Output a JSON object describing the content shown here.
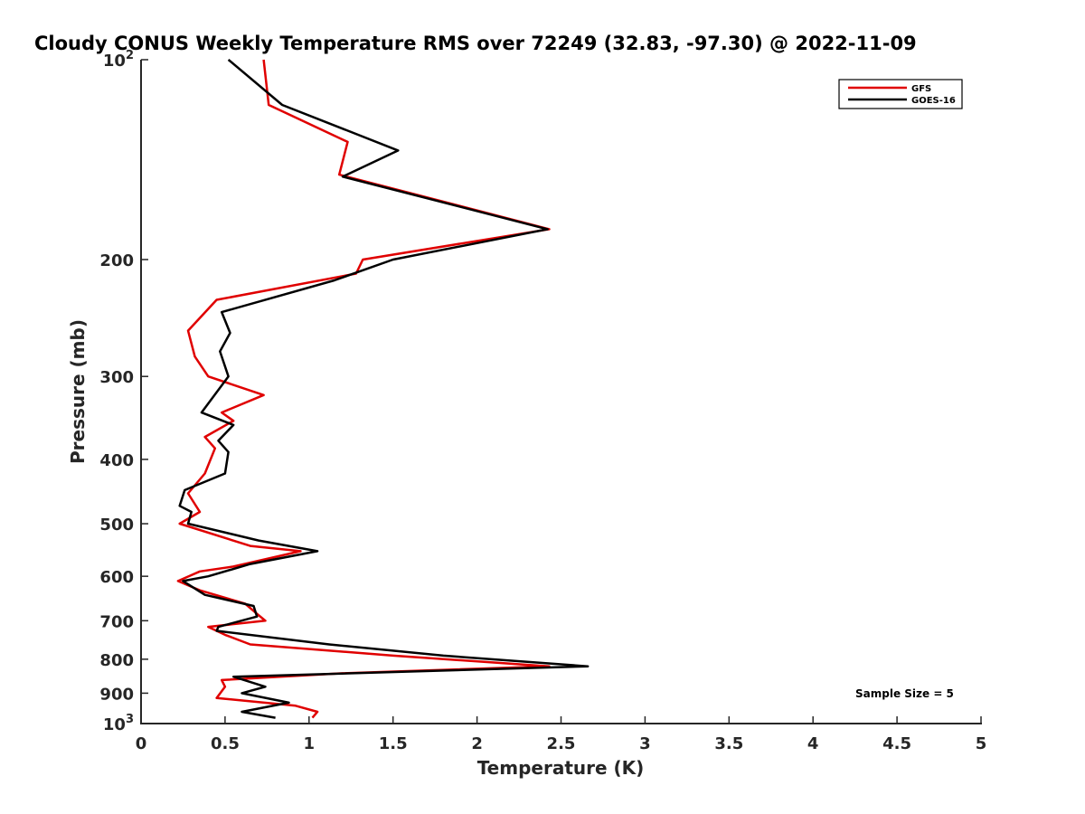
{
  "chart_data": {
    "type": "line",
    "title": "Cloudy CONUS Weekly Temperature RMS over 72249 (32.83, -97.30) @ 2022-11-09",
    "xlabel": "Temperature (K)",
    "ylabel": "Pressure (mb)",
    "xlim": [
      0,
      5
    ],
    "ylim": [
      1000,
      100
    ],
    "yscale": "log",
    "y_reversed": true,
    "grid": false,
    "legend_position": "top-right",
    "x_ticks": [
      {
        "value": 0,
        "label": "0"
      },
      {
        "value": 0.5,
        "label": "0.5"
      },
      {
        "value": 1,
        "label": "1"
      },
      {
        "value": 1.5,
        "label": "1.5"
      },
      {
        "value": 2,
        "label": "2"
      },
      {
        "value": 2.5,
        "label": "2.5"
      },
      {
        "value": 3,
        "label": "3"
      },
      {
        "value": 3.5,
        "label": "3.5"
      },
      {
        "value": 4,
        "label": "4"
      },
      {
        "value": 4.5,
        "label": "4.5"
      },
      {
        "value": 5,
        "label": "5"
      }
    ],
    "y_ticks": [
      {
        "value": 100,
        "base": "10",
        "exp": "2"
      },
      {
        "value": 200,
        "label": "200"
      },
      {
        "value": 300,
        "label": "300"
      },
      {
        "value": 400,
        "label": "400"
      },
      {
        "value": 500,
        "label": "500"
      },
      {
        "value": 600,
        "label": "600"
      },
      {
        "value": 700,
        "label": "700"
      },
      {
        "value": 800,
        "label": "800"
      },
      {
        "value": 900,
        "label": "900"
      },
      {
        "value": 1000,
        "base": "10",
        "exp": "3"
      }
    ],
    "series": [
      {
        "name": "GFS",
        "color": "#e00000",
        "points": [
          [
            0.73,
            100
          ],
          [
            0.76,
            117
          ],
          [
            1.23,
            133
          ],
          [
            1.18,
            149
          ],
          [
            2.43,
            180
          ],
          [
            1.32,
            200
          ],
          [
            1.28,
            210
          ],
          [
            0.45,
            230
          ],
          [
            0.28,
            256
          ],
          [
            0.32,
            280
          ],
          [
            0.4,
            300
          ],
          [
            0.73,
            320
          ],
          [
            0.48,
            340
          ],
          [
            0.55,
            350
          ],
          [
            0.38,
            370
          ],
          [
            0.44,
            385
          ],
          [
            0.38,
            420
          ],
          [
            0.28,
            450
          ],
          [
            0.35,
            480
          ],
          [
            0.23,
            500
          ],
          [
            0.65,
            540
          ],
          [
            0.95,
            550
          ],
          [
            0.55,
            580
          ],
          [
            0.35,
            590
          ],
          [
            0.22,
            610
          ],
          [
            0.35,
            630
          ],
          [
            0.62,
            660
          ],
          [
            0.68,
            680
          ],
          [
            0.74,
            700
          ],
          [
            0.4,
            715
          ],
          [
            0.5,
            735
          ],
          [
            0.65,
            760
          ],
          [
            1.5,
            790
          ],
          [
            2.43,
            820
          ],
          [
            1.2,
            840
          ],
          [
            0.48,
            860
          ],
          [
            0.5,
            880
          ],
          [
            0.45,
            915
          ],
          [
            0.92,
            940
          ],
          [
            1.05,
            960
          ],
          [
            1.02,
            980
          ]
        ]
      },
      {
        "name": "GOES-16",
        "color": "#000000",
        "points": [
          [
            0.52,
            100
          ],
          [
            0.84,
            117
          ],
          [
            1.53,
            137
          ],
          [
            1.2,
            150
          ],
          [
            2.42,
            180
          ],
          [
            1.5,
            200
          ],
          [
            1.15,
            215
          ],
          [
            0.48,
            240
          ],
          [
            0.53,
            258
          ],
          [
            0.47,
            275
          ],
          [
            0.52,
            300
          ],
          [
            0.36,
            340
          ],
          [
            0.55,
            355
          ],
          [
            0.46,
            375
          ],
          [
            0.52,
            390
          ],
          [
            0.5,
            420
          ],
          [
            0.26,
            445
          ],
          [
            0.23,
            470
          ],
          [
            0.3,
            480
          ],
          [
            0.28,
            500
          ],
          [
            0.7,
            530
          ],
          [
            1.05,
            550
          ],
          [
            0.65,
            575
          ],
          [
            0.4,
            600
          ],
          [
            0.25,
            610
          ],
          [
            0.38,
            640
          ],
          [
            0.67,
            665
          ],
          [
            0.69,
            690
          ],
          [
            0.46,
            715
          ],
          [
            0.45,
            725
          ],
          [
            1.12,
            760
          ],
          [
            1.8,
            790
          ],
          [
            2.66,
            820
          ],
          [
            0.55,
            850
          ],
          [
            0.74,
            880
          ],
          [
            0.6,
            900
          ],
          [
            0.88,
            930
          ],
          [
            0.6,
            960
          ],
          [
            0.8,
            980
          ]
        ]
      }
    ],
    "annotations": [
      {
        "text": "Sample Size = 5"
      }
    ]
  }
}
